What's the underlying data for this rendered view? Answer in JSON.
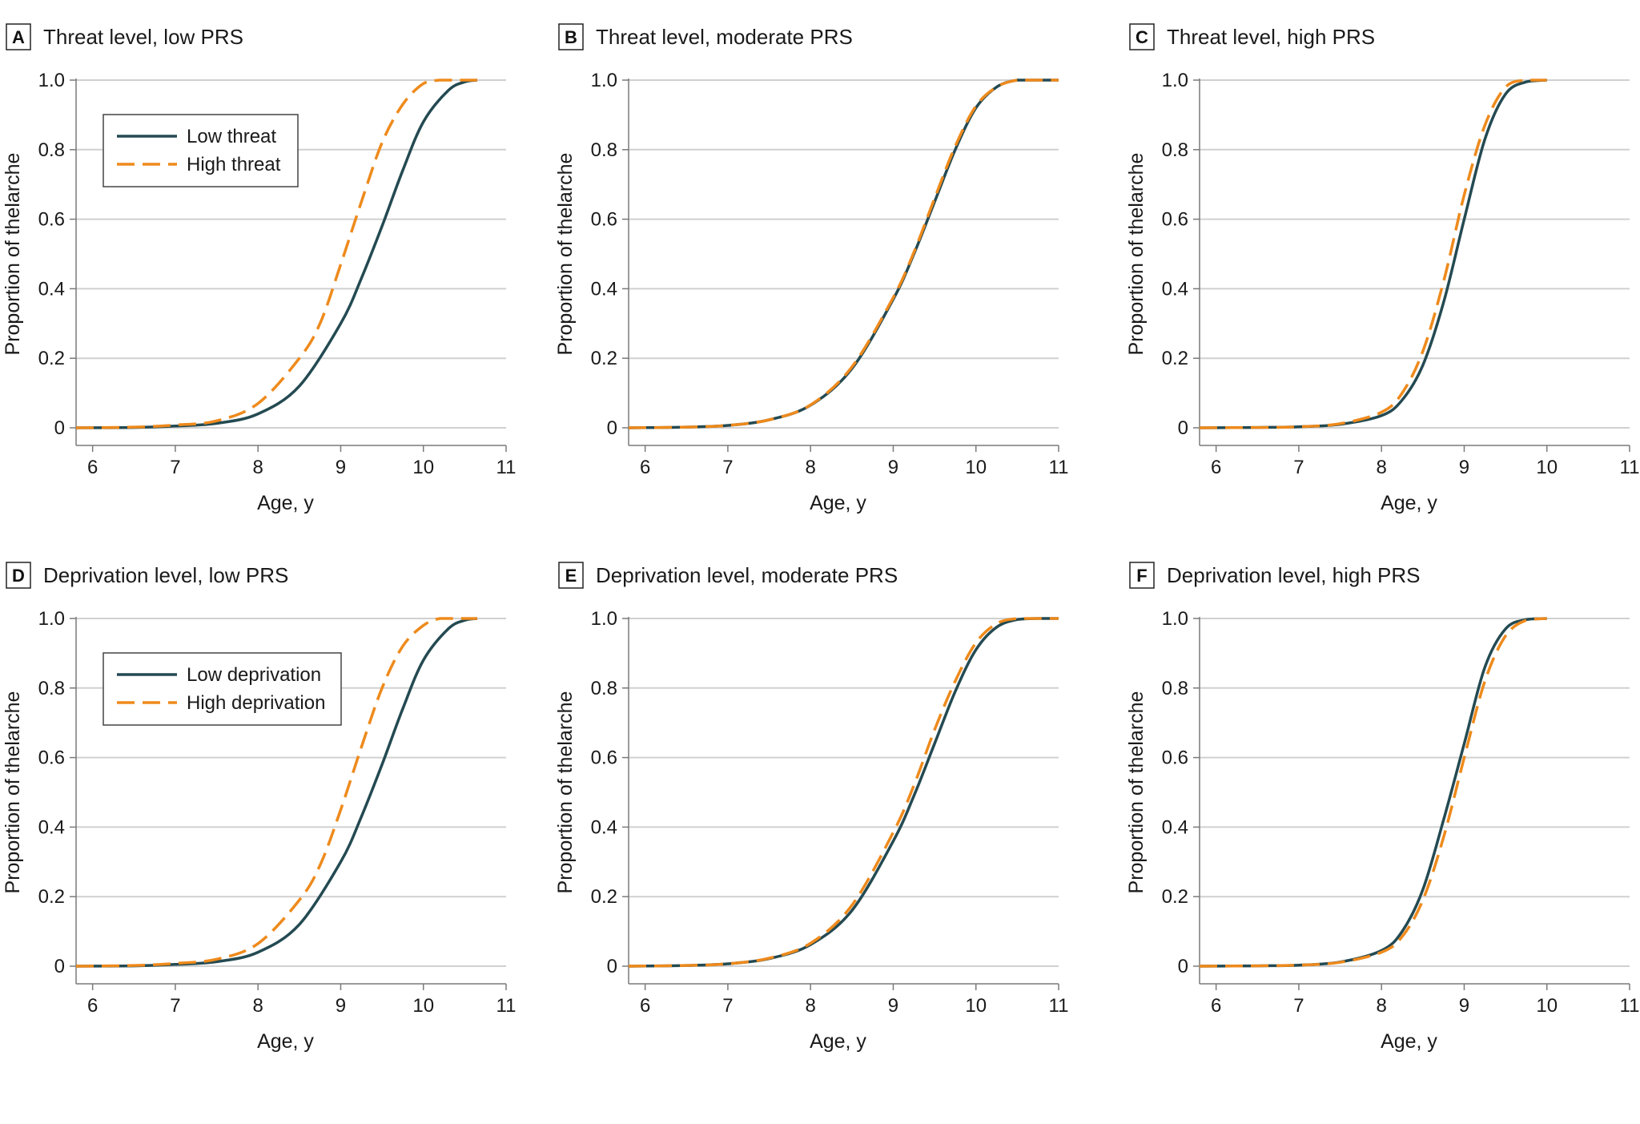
{
  "colors": {
    "low_line": "#244a52",
    "high_line": "#ee8a1c",
    "grid": "#d0d0d0",
    "axis": "#7a7a7a"
  },
  "chart_data": [
    {
      "id": "A",
      "type": "line",
      "title": "Threat level, low PRS",
      "xlabel": "Age, y",
      "ylabel": "Proportion of thelarche",
      "xlim": [
        5.8,
        11
      ],
      "ylim": [
        0,
        1
      ],
      "xticks": [
        "6",
        "7",
        "8",
        "9",
        "10",
        "11"
      ],
      "yticks": [
        "0",
        "0.2",
        "0.4",
        "0.6",
        "0.8",
        "1.0"
      ],
      "legend": {
        "position": "top-left",
        "entries": [
          "Low threat",
          "High threat"
        ]
      },
      "series": [
        {
          "name": "Low threat",
          "style": "solid",
          "x": [
            5.8,
            6.5,
            7.0,
            7.5,
            8.0,
            8.5,
            9.0,
            9.25,
            9.5,
            9.75,
            10.0,
            10.3,
            10.5,
            10.65
          ],
          "y": [
            0.0,
            0.001,
            0.005,
            0.013,
            0.04,
            0.12,
            0.3,
            0.43,
            0.58,
            0.74,
            0.88,
            0.97,
            0.995,
            1.0
          ]
        },
        {
          "name": "High threat",
          "style": "dashed",
          "x": [
            5.8,
            6.5,
            7.0,
            7.5,
            8.0,
            8.5,
            8.75,
            9.0,
            9.25,
            9.5,
            9.75,
            10.0,
            10.2,
            10.4,
            10.65
          ],
          "y": [
            0.0,
            0.002,
            0.008,
            0.02,
            0.07,
            0.2,
            0.3,
            0.47,
            0.65,
            0.82,
            0.93,
            0.99,
            1.0,
            1.0,
            1.0
          ]
        }
      ]
    },
    {
      "id": "B",
      "type": "line",
      "title": "Threat level, moderate PRS",
      "xlabel": "Age, y",
      "ylabel": "Proportion of thelarche",
      "xlim": [
        5.8,
        11
      ],
      "ylim": [
        0,
        1
      ],
      "xticks": [
        "6",
        "7",
        "8",
        "9",
        "10",
        "11"
      ],
      "yticks": [
        "0",
        "0.2",
        "0.4",
        "0.6",
        "0.8",
        "1.0"
      ],
      "legend": null,
      "series": [
        {
          "name": "Low threat",
          "style": "solid",
          "x": [
            5.8,
            6.5,
            7.0,
            7.5,
            8.0,
            8.5,
            9.0,
            9.25,
            9.5,
            9.75,
            10.0,
            10.25,
            10.5,
            10.75,
            11.0
          ],
          "y": [
            0.0,
            0.002,
            0.007,
            0.023,
            0.065,
            0.17,
            0.37,
            0.5,
            0.65,
            0.8,
            0.92,
            0.98,
            1.0,
            1.0,
            1.0
          ]
        },
        {
          "name": "High threat",
          "style": "dashed",
          "x": [
            5.8,
            6.5,
            7.0,
            7.5,
            8.0,
            8.5,
            9.0,
            9.25,
            9.5,
            9.75,
            10.0,
            10.25,
            10.5,
            10.75,
            11.0
          ],
          "y": [
            0.0,
            0.002,
            0.007,
            0.023,
            0.066,
            0.175,
            0.375,
            0.505,
            0.66,
            0.81,
            0.925,
            0.98,
            1.0,
            1.0,
            1.0
          ]
        }
      ]
    },
    {
      "id": "C",
      "type": "line",
      "title": "Threat level, high PRS",
      "xlabel": "Age, y",
      "ylabel": "Proportion of thelarche",
      "xlim": [
        5.8,
        11
      ],
      "ylim": [
        0,
        1
      ],
      "xticks": [
        "6",
        "7",
        "8",
        "9",
        "10",
        "11"
      ],
      "yticks": [
        "0",
        "0.2",
        "0.4",
        "0.6",
        "0.8",
        "1.0"
      ],
      "legend": null,
      "series": [
        {
          "name": "Low threat",
          "style": "solid",
          "x": [
            5.8,
            6.5,
            7.0,
            7.5,
            8.0,
            8.25,
            8.5,
            8.75,
            9.0,
            9.25,
            9.5,
            9.75,
            10.0
          ],
          "y": [
            0.0,
            0.001,
            0.003,
            0.01,
            0.035,
            0.08,
            0.18,
            0.36,
            0.6,
            0.83,
            0.96,
            0.995,
            1.0
          ]
        },
        {
          "name": "High threat",
          "style": "dashed",
          "x": [
            5.8,
            6.5,
            7.0,
            7.5,
            8.0,
            8.25,
            8.5,
            8.75,
            9.0,
            9.25,
            9.5,
            9.75,
            10.0
          ],
          "y": [
            0.0,
            0.001,
            0.003,
            0.012,
            0.045,
            0.1,
            0.22,
            0.42,
            0.67,
            0.87,
            0.98,
            1.0,
            1.0
          ]
        }
      ]
    },
    {
      "id": "D",
      "type": "line",
      "title": "Deprivation level, low PRS",
      "xlabel": "Age, y",
      "ylabel": "Proportion of thelarche",
      "xlim": [
        5.8,
        11
      ],
      "ylim": [
        0,
        1
      ],
      "xticks": [
        "6",
        "7",
        "8",
        "9",
        "10",
        "11"
      ],
      "yticks": [
        "0",
        "0.2",
        "0.4",
        "0.6",
        "0.8",
        "1.0"
      ],
      "legend": {
        "position": "top-left",
        "entries": [
          "Low deprivation",
          "High deprivation"
        ]
      },
      "series": [
        {
          "name": "Low deprivation",
          "style": "solid",
          "x": [
            5.8,
            6.5,
            7.0,
            7.5,
            8.0,
            8.5,
            9.0,
            9.25,
            9.5,
            9.75,
            10.0,
            10.3,
            10.5,
            10.65
          ],
          "y": [
            0.0,
            0.001,
            0.005,
            0.013,
            0.04,
            0.12,
            0.3,
            0.43,
            0.58,
            0.74,
            0.88,
            0.97,
            0.995,
            1.0
          ]
        },
        {
          "name": "High deprivation",
          "style": "dashed",
          "x": [
            5.8,
            6.5,
            7.0,
            7.5,
            8.0,
            8.5,
            8.75,
            9.0,
            9.25,
            9.5,
            9.75,
            10.0,
            10.2,
            10.4,
            10.65
          ],
          "y": [
            0.0,
            0.002,
            0.008,
            0.02,
            0.065,
            0.19,
            0.29,
            0.45,
            0.63,
            0.8,
            0.92,
            0.98,
            1.0,
            1.0,
            1.0
          ]
        }
      ]
    },
    {
      "id": "E",
      "type": "line",
      "title": "Deprivation level, moderate PRS",
      "xlabel": "Age, y",
      "ylabel": "Proportion of thelarche",
      "xlim": [
        5.8,
        11
      ],
      "ylim": [
        0,
        1
      ],
      "xticks": [
        "6",
        "7",
        "8",
        "9",
        "10",
        "11"
      ],
      "yticks": [
        "0",
        "0.2",
        "0.4",
        "0.6",
        "0.8",
        "1.0"
      ],
      "legend": null,
      "series": [
        {
          "name": "Low deprivation",
          "style": "solid",
          "x": [
            5.8,
            6.5,
            7.0,
            7.5,
            8.0,
            8.5,
            9.0,
            9.25,
            9.5,
            9.75,
            10.0,
            10.25,
            10.5,
            10.75,
            11.0
          ],
          "y": [
            0.0,
            0.002,
            0.007,
            0.022,
            0.062,
            0.16,
            0.36,
            0.49,
            0.64,
            0.79,
            0.91,
            0.975,
            0.997,
            1.0,
            1.0
          ]
        },
        {
          "name": "High deprivation",
          "style": "dashed",
          "x": [
            5.8,
            6.5,
            7.0,
            7.5,
            8.0,
            8.5,
            9.0,
            9.25,
            9.5,
            9.75,
            10.0,
            10.25,
            10.5,
            10.75,
            11.0
          ],
          "y": [
            0.0,
            0.002,
            0.007,
            0.023,
            0.066,
            0.175,
            0.385,
            0.52,
            0.68,
            0.82,
            0.93,
            0.985,
            1.0,
            1.0,
            1.0
          ]
        }
      ]
    },
    {
      "id": "F",
      "type": "line",
      "title": "Deprivation level, high PRS",
      "xlabel": "Age, y",
      "ylabel": "Proportion of thelarche",
      "xlim": [
        5.8,
        11
      ],
      "ylim": [
        0,
        1
      ],
      "xticks": [
        "6",
        "7",
        "8",
        "9",
        "10",
        "11"
      ],
      "yticks": [
        "0",
        "0.2",
        "0.4",
        "0.6",
        "0.8",
        "1.0"
      ],
      "legend": null,
      "series": [
        {
          "name": "Low deprivation",
          "style": "solid",
          "x": [
            5.8,
            6.5,
            7.0,
            7.5,
            8.0,
            8.25,
            8.5,
            8.75,
            9.0,
            9.25,
            9.5,
            9.75,
            10.0
          ],
          "y": [
            0.0,
            0.001,
            0.003,
            0.012,
            0.045,
            0.1,
            0.22,
            0.42,
            0.64,
            0.86,
            0.97,
            0.997,
            1.0
          ]
        },
        {
          "name": "High deprivation",
          "style": "dashed",
          "x": [
            5.8,
            6.5,
            7.0,
            7.5,
            8.0,
            8.25,
            8.5,
            8.75,
            9.0,
            9.25,
            9.5,
            9.75,
            10.0
          ],
          "y": [
            0.0,
            0.001,
            0.003,
            0.011,
            0.04,
            0.085,
            0.19,
            0.37,
            0.6,
            0.82,
            0.95,
            0.995,
            1.0
          ]
        }
      ]
    }
  ]
}
